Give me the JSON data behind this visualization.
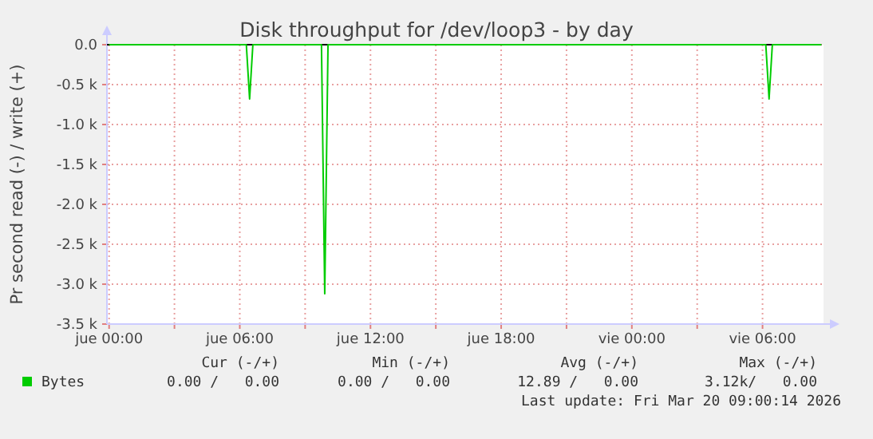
{
  "chart_data": {
    "type": "line",
    "title": "Disk throughput for /dev/loop3 - by day",
    "ylabel": "Pr second read (-) / write (+)",
    "x": [
      "2026-03-19T00:00",
      "2026-03-19T06:18",
      "2026-03-19T06:27",
      "2026-03-19T06:36",
      "2026-03-19T09:45",
      "2026-03-19T09:54",
      "2026-03-19T10:03",
      "2026-03-20T06:09",
      "2026-03-20T06:18",
      "2026-03-20T06:27",
      "2026-03-20T08:42"
    ],
    "series": [
      {
        "name": "Bytes",
        "color": "#00cc00",
        "values": [
          0,
          0,
          -680,
          0,
          0,
          -3120,
          0,
          0,
          -680,
          0,
          0
        ]
      }
    ],
    "xlim": [
      "2026-03-18T23:54",
      "2026-03-20T08:48"
    ],
    "xticks": [
      {
        "value": "2026-03-19T00:00",
        "label": "jue 00:00"
      },
      {
        "value": "2026-03-19T03:00",
        "label": null
      },
      {
        "value": "2026-03-19T06:00",
        "label": "jue 06:00"
      },
      {
        "value": "2026-03-19T09:00",
        "label": null
      },
      {
        "value": "2026-03-19T12:00",
        "label": "jue 12:00"
      },
      {
        "value": "2026-03-19T15:00",
        "label": null
      },
      {
        "value": "2026-03-19T18:00",
        "label": "jue 18:00"
      },
      {
        "value": "2026-03-19T21:00",
        "label": null
      },
      {
        "value": "2026-03-20T00:00",
        "label": "vie 00:00"
      },
      {
        "value": "2026-03-20T03:00",
        "label": null
      },
      {
        "value": "2026-03-20T06:00",
        "label": "vie 06:00"
      }
    ],
    "ylim": [
      -3500,
      0
    ],
    "yticks": [
      {
        "value": -3500,
        "label": "-3.5 k"
      },
      {
        "value": -3000,
        "label": "-3.0 k"
      },
      {
        "value": -2500,
        "label": "-2.5 k"
      },
      {
        "value": -2000,
        "label": "-2.0 k"
      },
      {
        "value": -1500,
        "label": "-1.5 k"
      },
      {
        "value": -1000,
        "label": "-1.0 k"
      },
      {
        "value": -500,
        "label": "-0.5 k"
      },
      {
        "value": 0,
        "label": "0.0"
      }
    ],
    "grid": true,
    "legend": "bottom",
    "marker": "none",
    "line_style": "solid",
    "annotations": [
      "Cur (-/+)",
      "Min (-/+)",
      "Avg (-/+)",
      "Max (-/+)",
      "0.00 /   0.00",
      "0.00 /   0.00",
      "12.89 /   0.00",
      "3.12k/   0.00",
      "Last update: Fri Mar 20 09:00:14 2026"
    ]
  }
}
